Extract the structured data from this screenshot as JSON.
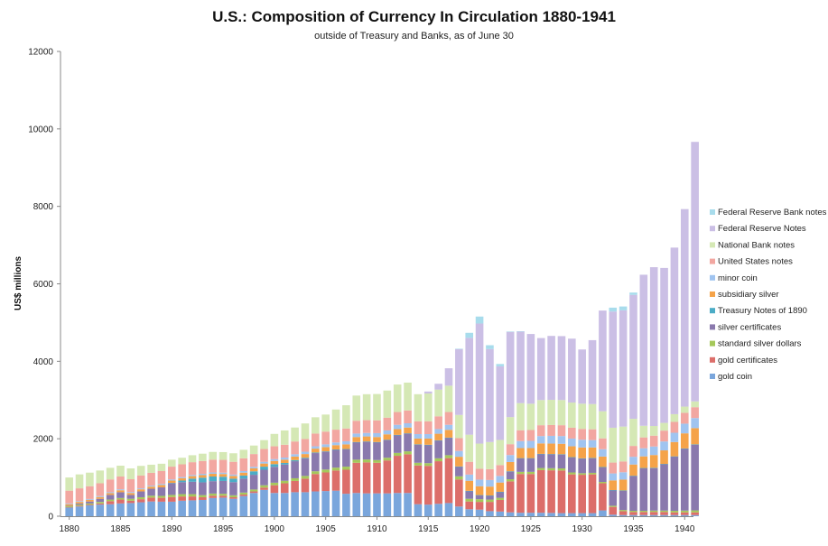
{
  "chart_data": {
    "type": "bar",
    "stacked": true,
    "title": "U.S.: Composition of Currency In Circulation 1880-1941",
    "subtitle": "outside of Treasury and Banks, as of June 30",
    "ylabel": "US$ millions",
    "ylim": [
      0,
      12000
    ],
    "yticks": [
      "0",
      "2000",
      "4000",
      "6000",
      "8000",
      "10000",
      "12000"
    ],
    "xticks": [
      "1880",
      "1885",
      "1890",
      "1895",
      "1900",
      "1905",
      "1910",
      "1915",
      "1920",
      "1925",
      "1930",
      "1935",
      "1940"
    ],
    "grid": false,
    "legend_position": "right",
    "categories": [
      "1880",
      "1881",
      "1882",
      "1883",
      "1884",
      "1885",
      "1886",
      "1887",
      "1888",
      "1889",
      "1890",
      "1891",
      "1892",
      "1893",
      "1894",
      "1895",
      "1896",
      "1897",
      "1898",
      "1899",
      "1900",
      "1901",
      "1902",
      "1903",
      "1904",
      "1905",
      "1906",
      "1907",
      "1908",
      "1909",
      "1910",
      "1911",
      "1912",
      "1913",
      "1914",
      "1915",
      "1916",
      "1917",
      "1918",
      "1919",
      "1920",
      "1921",
      "1922",
      "1923",
      "1924",
      "1925",
      "1926",
      "1927",
      "1928",
      "1929",
      "1930",
      "1931",
      "1932",
      "1933",
      "1934",
      "1935",
      "1936",
      "1937",
      "1938",
      "1939",
      "1940",
      "1941"
    ],
    "series": [
      {
        "name": "gold coin",
        "color": "#7aa6dc",
        "values": [
          225,
          250,
          280,
          300,
          310,
          330,
          340,
          360,
          380,
          375,
          375,
          400,
          410,
          420,
          470,
          480,
          450,
          520,
          600,
          680,
          600,
          600,
          620,
          620,
          640,
          650,
          660,
          580,
          600,
          590,
          590,
          590,
          600,
          600,
          310,
          300,
          320,
          340,
          250,
          180,
          170,
          130,
          120,
          100,
          90,
          90,
          90,
          85,
          80,
          80,
          80,
          80,
          150,
          40,
          30,
          30,
          30,
          30,
          30,
          30,
          30,
          30
        ]
      },
      {
        "name": "gold certificates",
        "color": "#dc6e6a",
        "values": [
          10,
          20,
          20,
          30,
          80,
          100,
          60,
          80,
          100,
          100,
          120,
          110,
          100,
          70,
          60,
          50,
          40,
          40,
          40,
          60,
          200,
          250,
          290,
          350,
          450,
          480,
          520,
          620,
          780,
          800,
          790,
          850,
          960,
          1000,
          1000,
          1000,
          1100,
          1160,
          700,
          200,
          200,
          240,
          300,
          800,
          1000,
          1000,
          1100,
          1100,
          1100,
          1000,
          990,
          1000,
          700,
          200,
          100,
          80,
          80,
          80,
          80,
          70,
          70,
          70
        ]
      },
      {
        "name": "standard silver dollars",
        "color": "#a5c85a",
        "values": [
          30,
          30,
          30,
          40,
          40,
          40,
          50,
          50,
          50,
          50,
          55,
          60,
          60,
          55,
          55,
          50,
          50,
          50,
          50,
          60,
          65,
          65,
          70,
          70,
          70,
          75,
          75,
          80,
          80,
          75,
          70,
          70,
          75,
          75,
          70,
          70,
          75,
          75,
          80,
          70,
          70,
          60,
          55,
          55,
          55,
          55,
          55,
          55,
          55,
          50,
          40,
          40,
          35,
          30,
          30,
          30,
          30,
          35,
          35,
          40,
          45,
          50
        ]
      },
      {
        "name": "silver certificates",
        "color": "#8a79ad",
        "values": [
          5,
          30,
          50,
          80,
          120,
          150,
          100,
          150,
          180,
          220,
          300,
          310,
          320,
          330,
          320,
          330,
          340,
          360,
          380,
          400,
          410,
          420,
          440,
          450,
          470,
          460,
          460,
          450,
          450,
          460,
          460,
          460,
          460,
          460,
          470,
          470,
          460,
          450,
          250,
          200,
          100,
          100,
          150,
          200,
          350,
          350,
          360,
          360,
          360,
          390,
          380,
          380,
          380,
          400,
          500,
          900,
          1100,
          1100,
          1200,
          1400,
          1600,
          1700
        ]
      },
      {
        "name": "Treasury Notes of 1890",
        "color": "#4bacc6",
        "values": [
          0,
          0,
          0,
          0,
          0,
          0,
          0,
          0,
          0,
          0,
          10,
          40,
          80,
          120,
          120,
          110,
          90,
          80,
          90,
          80,
          70,
          40,
          30,
          20,
          15,
          10,
          10,
          5,
          5,
          5,
          5,
          5,
          5,
          5,
          5,
          5,
          5,
          5,
          5,
          5,
          5,
          5,
          5,
          5,
          5,
          5,
          5,
          5,
          5,
          5,
          5,
          5,
          5,
          5,
          5,
          5,
          5,
          5,
          5,
          5,
          5,
          5
        ]
      },
      {
        "name": "subsidiary silver",
        "color": "#f5a349",
        "values": [
          40,
          40,
          45,
          45,
          45,
          50,
          50,
          55,
          55,
          60,
          60,
          60,
          65,
          65,
          70,
          70,
          70,
          75,
          75,
          80,
          80,
          85,
          90,
          95,
          100,
          110,
          110,
          120,
          130,
          130,
          130,
          140,
          150,
          150,
          150,
          160,
          170,
          200,
          250,
          260,
          230,
          230,
          240,
          240,
          260,
          260,
          270,
          270,
          270,
          280,
          280,
          270,
          270,
          250,
          280,
          290,
          300,
          330,
          350,
          370,
          390,
          420
        ]
      },
      {
        "name": "minor coin",
        "color": "#a0c4f0",
        "values": [
          20,
          20,
          20,
          25,
          25,
          25,
          25,
          25,
          25,
          30,
          30,
          30,
          30,
          35,
          35,
          35,
          35,
          40,
          40,
          45,
          50,
          55,
          60,
          60,
          60,
          70,
          70,
          80,
          90,
          90,
          100,
          100,
          110,
          110,
          115,
          115,
          120,
          130,
          150,
          160,
          170,
          170,
          170,
          180,
          180,
          185,
          190,
          200,
          200,
          200,
          200,
          190,
          190,
          180,
          190,
          200,
          210,
          220,
          230,
          240,
          250,
          260
        ]
      },
      {
        "name": "United States notes",
        "color": "#f2a7a1",
        "values": [
          330,
          330,
          330,
          330,
          330,
          330,
          330,
          330,
          330,
          330,
          330,
          330,
          330,
          330,
          330,
          330,
          330,
          330,
          330,
          330,
          330,
          330,
          330,
          330,
          330,
          330,
          330,
          330,
          330,
          330,
          330,
          330,
          330,
          330,
          330,
          330,
          330,
          330,
          330,
          330,
          280,
          280,
          280,
          280,
          280,
          280,
          280,
          280,
          280,
          280,
          280,
          280,
          280,
          280,
          280,
          280,
          280,
          280,
          280,
          280,
          280,
          280
        ]
      },
      {
        "name": "National Bank notes",
        "color": "#d5e8b5",
        "values": [
          340,
          360,
          350,
          330,
          300,
          280,
          280,
          250,
          210,
          190,
          180,
          170,
          180,
          190,
          200,
          200,
          220,
          220,
          220,
          230,
          320,
          370,
          360,
          400,
          420,
          440,
          520,
          600,
          650,
          670,
          680,
          700,
          710,
          720,
          700,
          720,
          690,
          680,
          600,
          700,
          650,
          700,
          650,
          700,
          700,
          680,
          650,
          650,
          650,
          650,
          650,
          650,
          700,
          900,
          900,
          700,
          300,
          250,
          200,
          200,
          160,
          150
        ]
      },
      {
        "name": "Federal Reserve Notes",
        "color": "#cbbfe5",
        "values": [
          0,
          0,
          0,
          0,
          0,
          0,
          0,
          0,
          0,
          0,
          0,
          0,
          0,
          0,
          0,
          0,
          0,
          0,
          0,
          0,
          0,
          0,
          0,
          0,
          0,
          0,
          0,
          0,
          0,
          0,
          0,
          0,
          0,
          0,
          0,
          50,
          150,
          450,
          1700,
          2500,
          3100,
          2400,
          1900,
          2200,
          1850,
          1800,
          1600,
          1650,
          1650,
          1650,
          1400,
          1650,
          2600,
          3000,
          3000,
          3200,
          3900,
          4100,
          4000,
          4300,
          5100,
          6700
        ]
      },
      {
        "name": "Federal Reserve Bank notes",
        "color": "#a8dcec",
        "values": [
          0,
          0,
          0,
          0,
          0,
          0,
          0,
          0,
          0,
          0,
          0,
          0,
          0,
          0,
          0,
          0,
          0,
          0,
          0,
          0,
          0,
          0,
          0,
          0,
          0,
          0,
          0,
          0,
          0,
          0,
          0,
          0,
          0,
          0,
          0,
          0,
          0,
          0,
          10,
          130,
          180,
          100,
          60,
          10,
          5,
          0,
          0,
          0,
          0,
          0,
          0,
          0,
          0,
          100,
          100,
          60,
          0,
          0,
          0,
          0,
          0,
          0
        ]
      }
    ]
  }
}
